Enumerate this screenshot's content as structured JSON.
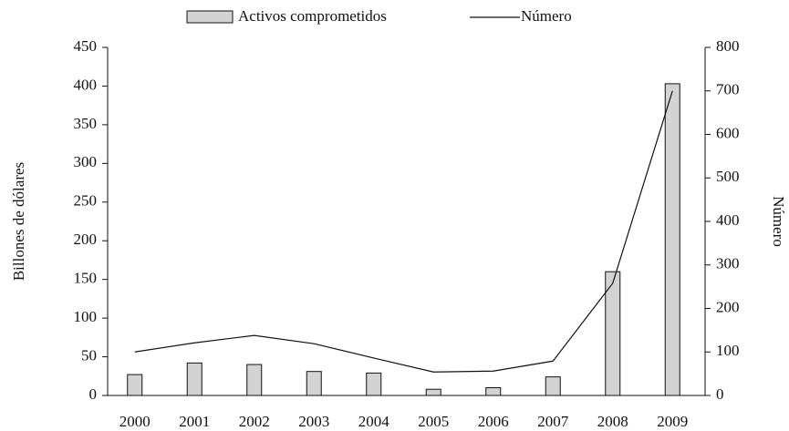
{
  "chart_data": {
    "type": "combo",
    "categories": [
      "2000",
      "2001",
      "2002",
      "2003",
      "2004",
      "2005",
      "2006",
      "2007",
      "2008",
      "2009"
    ],
    "series": [
      {
        "name": "Activos comprometidos",
        "type": "bar",
        "color": "#d3d3d3",
        "values": [
          27,
          42,
          40,
          31,
          29,
          8,
          10,
          24,
          160,
          403
        ]
      },
      {
        "name": "Número",
        "type": "line",
        "color": "#111111",
        "axis": "y2",
        "values": [
          100,
          121,
          138,
          119,
          86,
          54,
          56,
          79,
          258,
          700
        ]
      }
    ],
    "ylabel": "Billones de dólares",
    "y2label": "Número",
    "ylim": [
      0,
      450
    ],
    "yticks": [
      0,
      50,
      100,
      150,
      200,
      250,
      300,
      350,
      400,
      450
    ],
    "y2lim": [
      0,
      800
    ],
    "y2ticks": [
      0,
      100,
      200,
      300,
      400,
      500,
      600,
      700,
      800
    ],
    "legend": "top",
    "grid": false
  }
}
